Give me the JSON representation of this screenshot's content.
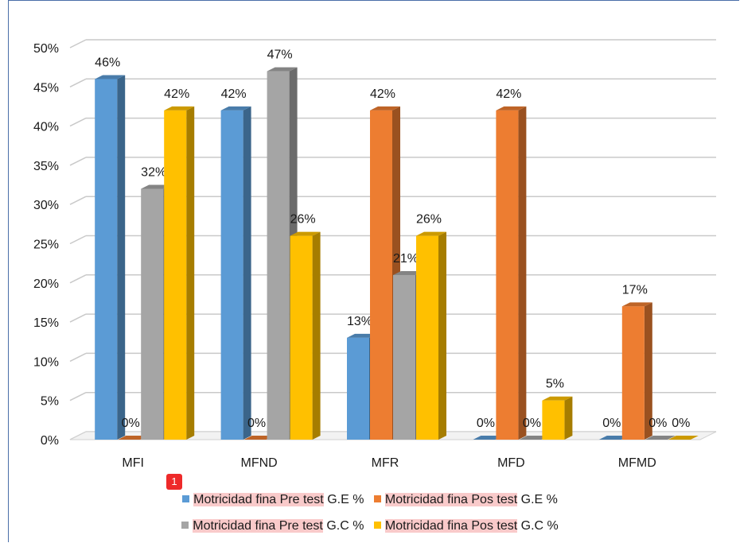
{
  "chart_data": {
    "type": "bar",
    "categories": [
      "MFI",
      "MFND",
      "MFR",
      "MFD",
      "MFMD"
    ],
    "series": [
      {
        "name_highlight": "Motricidad fina Pre test",
        "name_rest": " G.E %",
        "color": "#5b9bd5",
        "values": [
          46,
          42,
          13,
          0,
          0
        ],
        "labels": [
          "46%",
          "42%",
          "13%",
          "0%",
          "0%"
        ]
      },
      {
        "name_highlight": "Motricidad fina Pos test",
        "name_rest": " G.E %",
        "color": "#ed7d31",
        "values": [
          0,
          0,
          42,
          42,
          17
        ],
        "labels": [
          "0%",
          "0%",
          "42%",
          "42%",
          "17%"
        ]
      },
      {
        "name_highlight": "Motricidad fina Pre test",
        "name_rest": " G.C %",
        "color": "#a5a5a5",
        "values": [
          32,
          47,
          21,
          0,
          0
        ],
        "labels": [
          "32%",
          "47%",
          "21%",
          "0%",
          "0%"
        ]
      },
      {
        "name_highlight": "Motricidad fina Pos test",
        "name_rest": " G.C %",
        "color": "#ffc000",
        "values": [
          42,
          26,
          26,
          5,
          0
        ],
        "labels": [
          "42%",
          "26%",
          "26%",
          "5%",
          "0%"
        ]
      }
    ],
    "y_ticks": [
      "0%",
      "5%",
      "10%",
      "15%",
      "20%",
      "25%",
      "30%",
      "35%",
      "40%",
      "45%",
      "50%"
    ],
    "ylim": [
      0,
      50
    ],
    "grid": true,
    "legend_position": "bottom",
    "style": "3d-clustered-column"
  },
  "annotation_badge": "1"
}
